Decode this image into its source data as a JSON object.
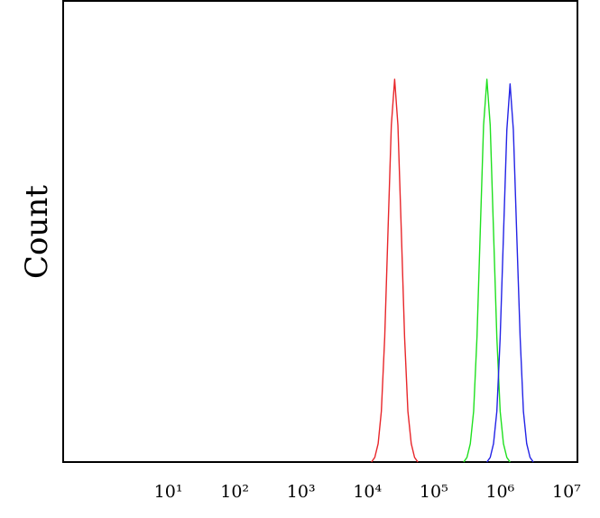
{
  "chart_data": {
    "type": "line",
    "ylabel": "Count",
    "xscale": "log",
    "xlim": [
      0.26,
      14600000
    ],
    "xticks": [
      {
        "value": 10,
        "label": "10¹"
      },
      {
        "value": 100,
        "label": "10²"
      },
      {
        "value": 1000,
        "label": "10³"
      },
      {
        "value": 10000,
        "label": "10⁴"
      },
      {
        "value": 100000,
        "label": "10⁵"
      },
      {
        "value": 1000000,
        "label": "10⁶"
      },
      {
        "value": 10000000,
        "label": "10⁷"
      }
    ],
    "ylim": [
      0,
      100
    ],
    "series": [
      {
        "color": "#e8262a",
        "x": [
          11500,
          12900,
          14500,
          16200,
          18200,
          20400,
          22900,
          25700,
          28800,
          32400,
          36300,
          40700,
          45700,
          51300,
          57500
        ],
        "values": [
          0,
          1,
          4,
          11,
          27,
          50,
          73,
          83,
          73,
          50,
          27,
          11,
          4,
          1,
          0
        ]
      },
      {
        "color": "#1fe01f",
        "x": [
          282000,
          316000,
          355000,
          398000,
          447000,
          501000,
          562000,
          631000,
          708000,
          794000,
          891000,
          1000000,
          1120000,
          1260000,
          1410000
        ],
        "values": [
          0,
          1,
          4,
          11,
          27,
          50,
          73,
          83,
          73,
          50,
          27,
          11,
          4,
          1,
          0
        ]
      },
      {
        "color": "#2323e6",
        "x": [
          631000,
          708000,
          794000,
          891000,
          1000000,
          1120000,
          1260000,
          1410000,
          1580000,
          1780000,
          2000000,
          2240000,
          2510000,
          2820000,
          3160000
        ],
        "values": [
          0,
          1,
          4,
          11,
          27,
          49,
          72,
          82,
          72,
          49,
          27,
          11,
          4,
          1,
          0
        ]
      }
    ]
  }
}
